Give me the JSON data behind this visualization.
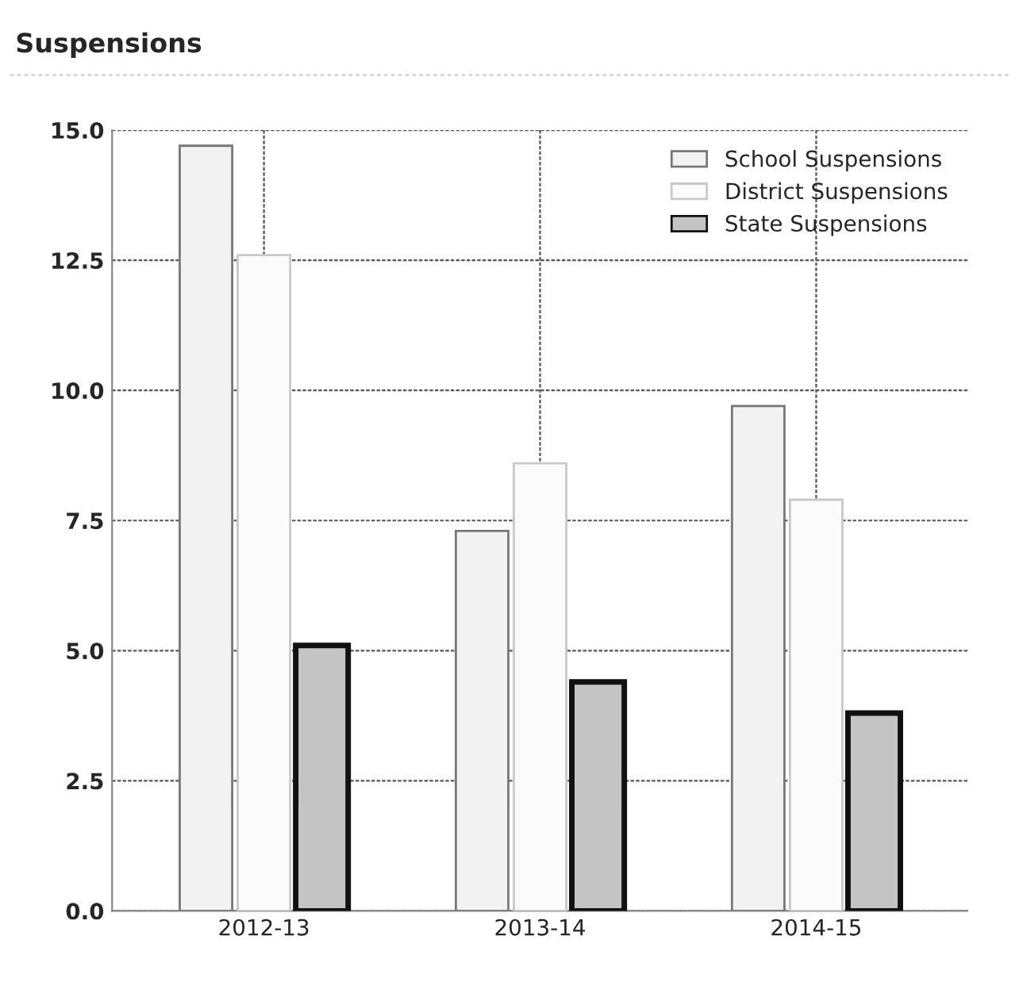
{
  "chart_data": {
    "type": "bar",
    "title": "Suspensions",
    "categories": [
      "2012-13",
      "2013-14",
      "2014-15"
    ],
    "series": [
      {
        "name": "School Suspensions",
        "color": "#f2f2f2",
        "values": [
          14.7,
          7.3,
          9.7
        ]
      },
      {
        "name": "District Suspensions",
        "color": "#fbfbfb",
        "values": [
          12.6,
          8.6,
          7.9
        ]
      },
      {
        "name": "State Suspensions",
        "color": "#c4c4c4",
        "values": [
          5.1,
          4.4,
          3.8
        ]
      }
    ],
    "ylim": [
      0,
      15
    ],
    "yticks": [
      {
        "value": 0,
        "label": "0.0"
      },
      {
        "value": 2.5,
        "label": "2.5"
      },
      {
        "value": 5,
        "label": "5.0"
      },
      {
        "value": 7.5,
        "label": "7.5"
      },
      {
        "value": 10,
        "label": "10.0"
      },
      {
        "value": 12.5,
        "label": "12.5"
      },
      {
        "value": 15,
        "label": "15.0"
      }
    ],
    "grid": true,
    "legend": "top right"
  }
}
